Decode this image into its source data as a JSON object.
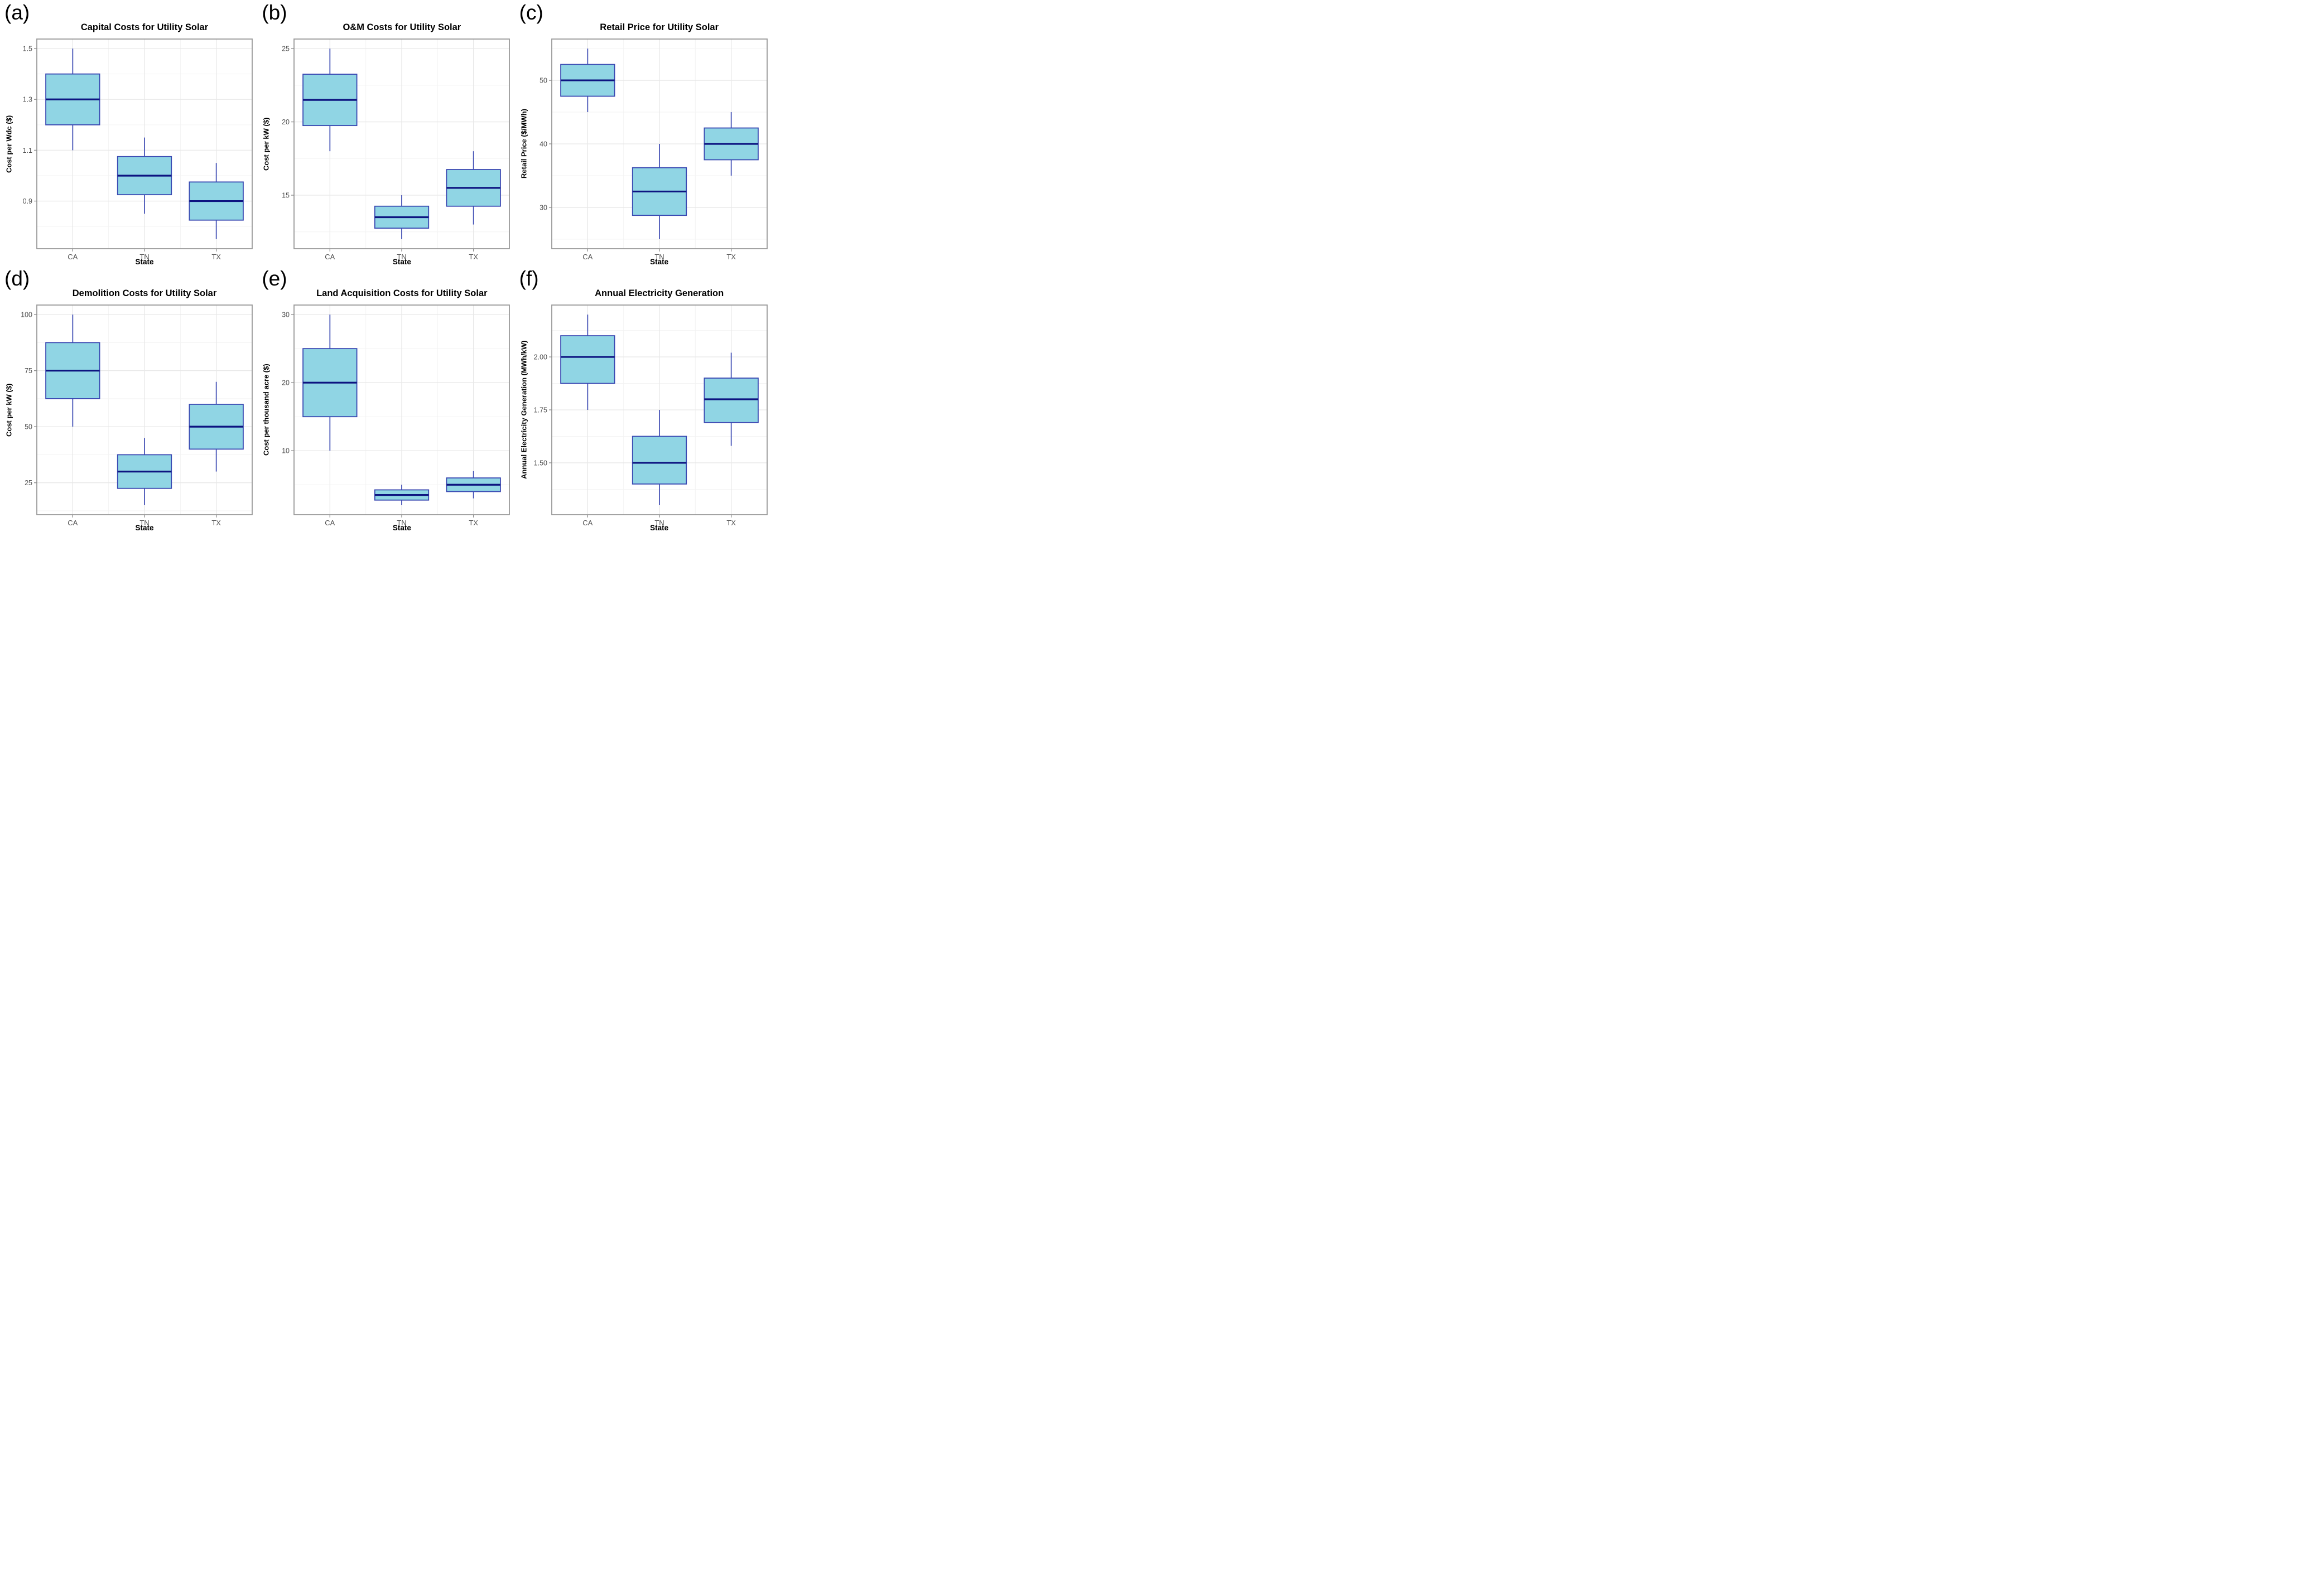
{
  "page": {
    "background": "#ffffff"
  },
  "style": {
    "colors": {
      "box_fill": "#90d5e4",
      "box_border": "#3a49b2",
      "median": "#0d1480",
      "whisker": "#4754b6",
      "panel_border": "#999999",
      "grid_major": "#e8e8e8",
      "grid_minor": "#f3f3f3",
      "tick_mark": "#8c8c8c",
      "tick_label": "#4f4f4f",
      "axis_title": "#000000",
      "title": "#000000",
      "panel_letter": "#000000"
    }
  },
  "chart_data": [
    {
      "panel_label": "(a)",
      "type": "boxplot",
      "title": "Capital Costs for Utility Solar",
      "xlabel": "State",
      "ylabel": "Cost per Wdc ($)",
      "categories": [
        "CA",
        "TN",
        "TX"
      ],
      "ylim": [
        0.7125,
        1.5375
      ],
      "yticks": {
        "major": [
          0.9,
          1.1,
          1.3,
          1.5
        ],
        "labels": [
          "0.9",
          "1.1",
          "1.3",
          "1.5"
        ],
        "minor": [
          0.8,
          1.0,
          1.2,
          1.4
        ]
      },
      "grid": true,
      "legend": false,
      "series": [
        {
          "category": "CA",
          "whisker_low": 1.1,
          "q1": 1.2,
          "median": 1.3,
          "q3": 1.4,
          "whisker_high": 1.5
        },
        {
          "category": "TN",
          "whisker_low": 0.85,
          "q1": 0.925,
          "median": 1.0,
          "q3": 1.075,
          "whisker_high": 1.15
        },
        {
          "category": "TX",
          "whisker_low": 0.75,
          "q1": 0.825,
          "median": 0.9,
          "q3": 0.975,
          "whisker_high": 1.05
        }
      ]
    },
    {
      "panel_label": "(b)",
      "type": "boxplot",
      "title": "O&M Costs for Utility Solar",
      "xlabel": "State",
      "ylabel": "Cost per kW ($)",
      "categories": [
        "CA",
        "TN",
        "TX"
      ],
      "ylim": [
        11.35,
        25.65
      ],
      "yticks": {
        "major": [
          15,
          20,
          25
        ],
        "labels": [
          "15",
          "20",
          "25"
        ],
        "minor": [
          12.5,
          17.5,
          22.5
        ]
      },
      "grid": true,
      "legend": false,
      "series": [
        {
          "category": "CA",
          "whisker_low": 18,
          "q1": 19.75,
          "median": 21.5,
          "q3": 23.25,
          "whisker_high": 25
        },
        {
          "category": "TN",
          "whisker_low": 12,
          "q1": 12.75,
          "median": 13.5,
          "q3": 14.25,
          "whisker_high": 15
        },
        {
          "category": "TX",
          "whisker_low": 13,
          "q1": 14.25,
          "median": 15.5,
          "q3": 16.75,
          "whisker_high": 18
        }
      ]
    },
    {
      "panel_label": "(c)",
      "type": "boxplot",
      "title": "Retail Price for Utility Solar",
      "xlabel": "State",
      "ylabel": "Retail Price ($/MWh)",
      "categories": [
        "CA",
        "TN",
        "TX"
      ],
      "ylim": [
        23.5,
        56.5
      ],
      "yticks": {
        "major": [
          30,
          40,
          50
        ],
        "labels": [
          "30",
          "40",
          "50"
        ],
        "minor": [
          25,
          35,
          45,
          55
        ]
      },
      "grid": true,
      "legend": false,
      "series": [
        {
          "category": "CA",
          "whisker_low": 45,
          "q1": 47.5,
          "median": 50,
          "q3": 52.5,
          "whisker_high": 55
        },
        {
          "category": "TN",
          "whisker_low": 25,
          "q1": 28.75,
          "median": 32.5,
          "q3": 36.25,
          "whisker_high": 40
        },
        {
          "category": "TX",
          "whisker_low": 35,
          "q1": 37.5,
          "median": 40,
          "q3": 42.5,
          "whisker_high": 45
        }
      ]
    },
    {
      "panel_label": "(d)",
      "type": "boxplot",
      "title": "Demolition Costs for Utility Solar",
      "xlabel": "State",
      "ylabel": "Cost per kW ($)",
      "categories": [
        "CA",
        "TN",
        "TX"
      ],
      "ylim": [
        10.75,
        104.25
      ],
      "yticks": {
        "major": [
          25,
          50,
          75,
          100
        ],
        "labels": [
          "25",
          "50",
          "75",
          "100"
        ],
        "minor": [
          12.5,
          37.5,
          62.5,
          87.5
        ]
      },
      "grid": true,
      "legend": false,
      "series": [
        {
          "category": "CA",
          "whisker_low": 50,
          "q1": 62.5,
          "median": 75,
          "q3": 87.5,
          "whisker_high": 100
        },
        {
          "category": "TN",
          "whisker_low": 15,
          "q1": 22.5,
          "median": 30,
          "q3": 37.5,
          "whisker_high": 45
        },
        {
          "category": "TX",
          "whisker_low": 30,
          "q1": 40,
          "median": 50,
          "q3": 60,
          "whisker_high": 70
        }
      ]
    },
    {
      "panel_label": "(e)",
      "type": "boxplot",
      "title": "Land Acquisition Costs for Utility Solar",
      "xlabel": "State",
      "ylabel": "Cost per thousand acre ($)",
      "categories": [
        "CA",
        "TN",
        "TX"
      ],
      "ylim": [
        0.6,
        31.4
      ],
      "yticks": {
        "major": [
          10,
          20,
          30
        ],
        "labels": [
          "10",
          "20",
          "30"
        ],
        "minor": [
          5,
          15,
          25
        ]
      },
      "grid": true,
      "legend": false,
      "series": [
        {
          "category": "CA",
          "whisker_low": 10,
          "q1": 15,
          "median": 20,
          "q3": 25,
          "whisker_high": 30
        },
        {
          "category": "TN",
          "whisker_low": 2,
          "q1": 2.75,
          "median": 3.5,
          "q3": 4.25,
          "whisker_high": 5
        },
        {
          "category": "TX",
          "whisker_low": 3,
          "q1": 4,
          "median": 5,
          "q3": 6,
          "whisker_high": 7
        }
      ]
    },
    {
      "panel_label": "(f)",
      "type": "boxplot",
      "title": "Annual Electricity Generation",
      "xlabel": "State",
      "ylabel": "Annual Electricity Generation (MWh/kW)",
      "categories": [
        "CA",
        "TN",
        "TX"
      ],
      "ylim": [
        1.255,
        2.245
      ],
      "yticks": {
        "major": [
          1.5,
          1.75,
          2.0
        ],
        "labels": [
          "1.50",
          "1.75",
          "2.00"
        ],
        "minor": [
          1.375,
          1.625,
          1.875,
          2.125
        ]
      },
      "grid": true,
      "legend": false,
      "series": [
        {
          "category": "CA",
          "whisker_low": 1.75,
          "q1": 1.875,
          "median": 2.0,
          "q3": 2.1,
          "whisker_high": 2.2
        },
        {
          "category": "TN",
          "whisker_low": 1.3,
          "q1": 1.4,
          "median": 1.5,
          "q3": 1.625,
          "whisker_high": 1.75
        },
        {
          "category": "TX",
          "whisker_low": 1.58,
          "q1": 1.69,
          "median": 1.8,
          "q3": 1.9,
          "whisker_high": 2.02
        }
      ]
    }
  ]
}
